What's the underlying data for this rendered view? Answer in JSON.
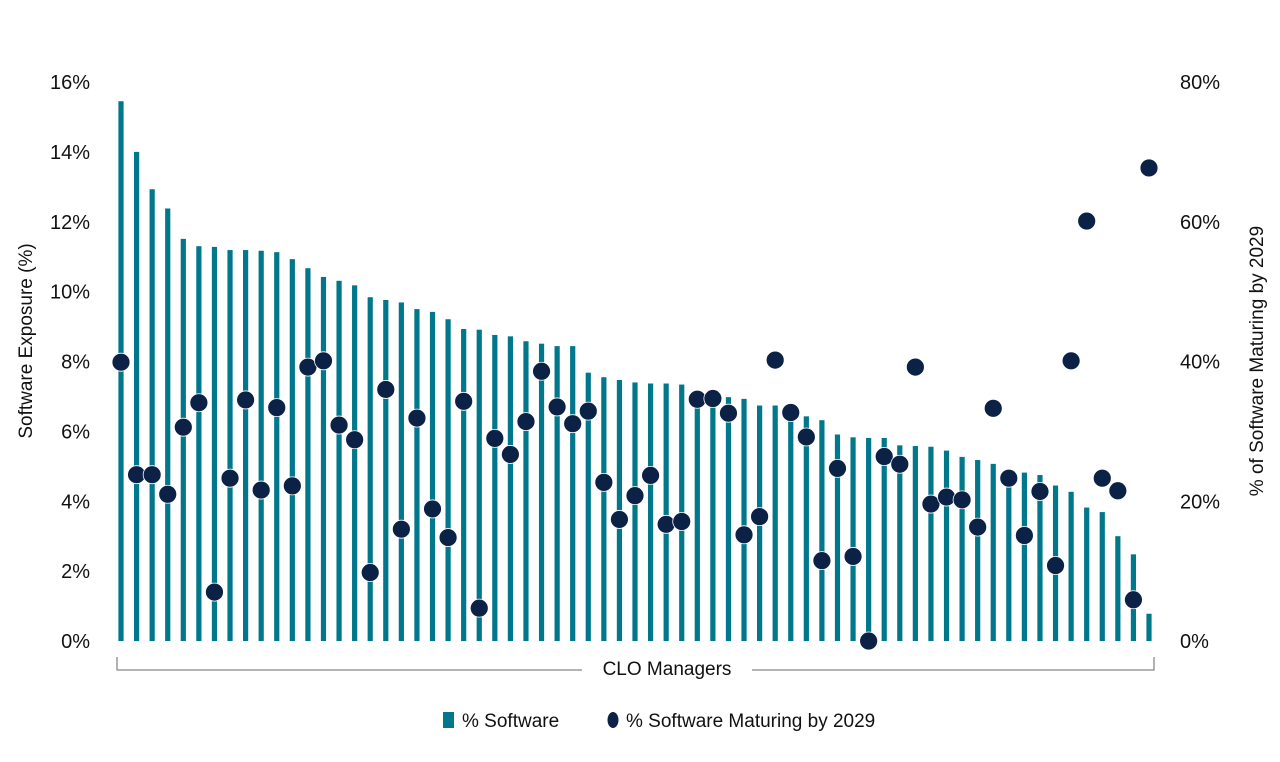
{
  "chart_data": {
    "type": "bar",
    "secondary_type": "scatter",
    "title": "",
    "xlabel": "CLO Managers",
    "ylabel": "Software Exposure (%)",
    "y2label": "% of Software Maturing by 2029",
    "ylim": [
      0,
      16
    ],
    "y2lim": [
      0,
      80
    ],
    "yticks": [
      "0%",
      "2%",
      "4%",
      "6%",
      "8%",
      "10%",
      "12%",
      "14%",
      "16%"
    ],
    "y2ticks": [
      "0%",
      "20%",
      "40%",
      "60%",
      "80%"
    ],
    "grid": false,
    "legend_placement": "bottom",
    "colors": {
      "bars": "#00778B",
      "dots": "#0B2145"
    },
    "series": [
      {
        "name": "% Software",
        "axis": "left",
        "mark": "bar",
        "values": [
          15.45,
          14.0,
          12.93,
          12.38,
          11.51,
          11.3,
          11.28,
          11.19,
          11.19,
          11.17,
          11.13,
          10.93,
          10.67,
          10.42,
          10.31,
          10.18,
          9.84,
          9.76,
          9.69,
          9.5,
          9.42,
          9.21,
          8.93,
          8.91,
          8.76,
          8.72,
          8.58,
          8.51,
          8.44,
          8.44,
          7.68,
          7.55,
          7.47,
          7.4,
          7.37,
          7.37,
          7.34,
          7.0,
          7.0,
          6.98,
          6.93,
          6.74,
          6.74,
          6.7,
          6.43,
          6.32,
          5.91,
          5.83,
          5.81,
          5.81,
          5.6,
          5.58,
          5.56,
          5.45,
          5.27,
          5.18,
          5.07,
          4.85,
          4.82,
          4.75,
          4.45,
          4.27,
          3.82,
          3.69,
          3.0,
          2.48,
          0.78
        ]
      },
      {
        "name": "% Software Maturing by 2029",
        "axis": "right",
        "mark": "dot",
        "values": [
          39.9,
          23.8,
          23.8,
          21.0,
          30.6,
          34.1,
          7.0,
          23.3,
          34.5,
          21.6,
          33.4,
          22.2,
          39.2,
          40.1,
          30.9,
          28.8,
          9.8,
          36.0,
          16.0,
          31.9,
          18.9,
          14.8,
          34.3,
          4.7,
          29.0,
          26.7,
          31.4,
          38.6,
          33.5,
          31.1,
          32.9,
          22.7,
          17.4,
          20.8,
          23.7,
          16.7,
          17.1,
          34.6,
          34.7,
          32.6,
          15.2,
          17.8,
          40.2,
          32.7,
          29.2,
          11.5,
          24.7,
          12.1,
          0.0,
          26.4,
          25.3,
          39.2,
          19.6,
          20.6,
          20.2,
          16.3,
          33.3,
          23.3,
          15.1,
          21.4,
          10.8,
          40.1,
          60.1,
          23.3,
          21.5,
          5.9,
          67.7
        ]
      }
    ]
  }
}
